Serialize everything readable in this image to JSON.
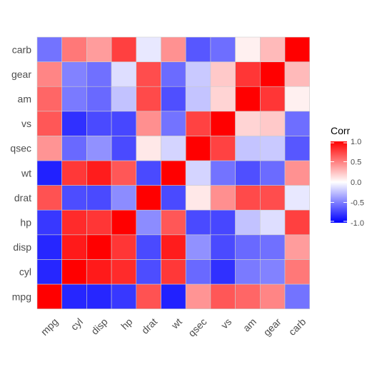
{
  "chart_data": {
    "type": "heatmap",
    "title": "",
    "xlabel": "",
    "ylabel": "",
    "variables": [
      "mpg",
      "cyl",
      "disp",
      "hp",
      "drat",
      "wt",
      "qsec",
      "vs",
      "am",
      "gear",
      "carb"
    ],
    "x_categories": [
      "mpg",
      "cyl",
      "disp",
      "hp",
      "drat",
      "wt",
      "qsec",
      "vs",
      "am",
      "gear",
      "carb"
    ],
    "y_categories": [
      "mpg",
      "cyl",
      "disp",
      "hp",
      "drat",
      "wt",
      "qsec",
      "vs",
      "am",
      "gear",
      "carb"
    ],
    "matrix": [
      [
        1.0,
        -0.85,
        -0.85,
        -0.78,
        0.68,
        -0.87,
        0.42,
        0.66,
        0.6,
        0.48,
        -0.55
      ],
      [
        -0.85,
        1.0,
        0.9,
        0.83,
        -0.7,
        0.78,
        -0.59,
        -0.81,
        -0.52,
        -0.49,
        0.53
      ],
      [
        -0.85,
        0.9,
        1.0,
        0.79,
        -0.71,
        0.89,
        -0.43,
        -0.71,
        -0.59,
        -0.56,
        0.39
      ],
      [
        -0.78,
        0.83,
        0.79,
        1.0,
        -0.45,
        0.66,
        -0.71,
        -0.72,
        -0.24,
        -0.13,
        0.75
      ],
      [
        0.68,
        -0.7,
        -0.71,
        -0.45,
        1.0,
        -0.71,
        0.09,
        0.44,
        0.71,
        0.7,
        -0.09
      ],
      [
        -0.87,
        0.78,
        0.89,
        0.66,
        -0.71,
        1.0,
        -0.17,
        -0.55,
        -0.69,
        -0.58,
        0.43
      ],
      [
        0.42,
        -0.59,
        -0.43,
        -0.71,
        0.09,
        -0.17,
        1.0,
        0.74,
        -0.23,
        -0.21,
        -0.66
      ],
      [
        0.66,
        -0.81,
        -0.71,
        -0.72,
        0.44,
        -0.55,
        0.74,
        1.0,
        0.17,
        0.21,
        -0.57
      ],
      [
        0.6,
        -0.52,
        -0.59,
        -0.24,
        0.71,
        -0.69,
        -0.23,
        0.17,
        1.0,
        0.79,
        0.06
      ],
      [
        0.48,
        -0.49,
        -0.56,
        -0.13,
        0.7,
        -0.58,
        -0.21,
        0.21,
        0.79,
        1.0,
        0.27
      ],
      [
        -0.55,
        0.53,
        0.39,
        0.75,
        -0.09,
        0.43,
        -0.66,
        -0.57,
        0.06,
        0.27,
        1.0
      ]
    ],
    "color_scale": {
      "low": "#0000ff",
      "mid": "#ffffff",
      "high": "#ff0000",
      "limits": [
        -1,
        1
      ]
    },
    "legend": {
      "title": "Corr",
      "position": "right",
      "ticks": [
        1.0,
        0.5,
        0.0,
        -0.5,
        -1.0
      ],
      "tick_labels": [
        "1.0",
        "0.5",
        "0.0",
        "-0.5",
        "-1.0"
      ]
    },
    "grid": false
  }
}
